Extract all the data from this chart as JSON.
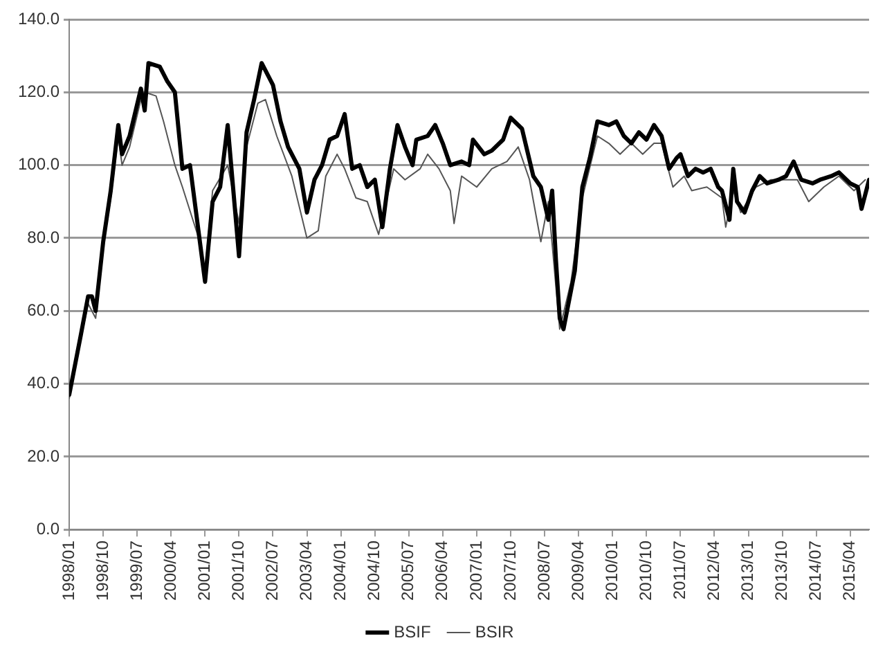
{
  "chart_data": {
    "type": "line",
    "xlim": [
      "1998-01",
      "2015-09"
    ],
    "xticks": [
      {
        "value": "1998-01",
        "label": "1998/01"
      },
      {
        "value": "1998-10",
        "label": "1998/10"
      },
      {
        "value": "1999-07",
        "label": "1999/07"
      },
      {
        "value": "2000-04",
        "label": "2000/04"
      },
      {
        "value": "2001-01",
        "label": "2001/01"
      },
      {
        "value": "2001-10",
        "label": "2001/10"
      },
      {
        "value": "2002-07",
        "label": "2002/07"
      },
      {
        "value": "2003-04",
        "label": "2003/04"
      },
      {
        "value": "2004-01",
        "label": "2004/01"
      },
      {
        "value": "2004-10",
        "label": "2004/10"
      },
      {
        "value": "2005-07",
        "label": "2005/07"
      },
      {
        "value": "2006-04",
        "label": "2006/04"
      },
      {
        "value": "2007-01",
        "label": "2007/01"
      },
      {
        "value": "2007-10",
        "label": "2007/10"
      },
      {
        "value": "2008-07",
        "label": "2008/07"
      },
      {
        "value": "2009-04",
        "label": "2009/04"
      },
      {
        "value": "2010-01",
        "label": "2010/01"
      },
      {
        "value": "2010-10",
        "label": "2010/10"
      },
      {
        "value": "2011-07",
        "label": "2011/07"
      },
      {
        "value": "2012-04",
        "label": "2012/04"
      },
      {
        "value": "2013-01",
        "label": "2013/01"
      },
      {
        "value": "2013-10",
        "label": "2013/10"
      },
      {
        "value": "2014-07",
        "label": "2014/07"
      },
      {
        "value": "2015-04",
        "label": "2015/04"
      }
    ],
    "ylim": [
      0,
      140
    ],
    "yticks": [
      {
        "value": 0,
        "label": "0.0"
      },
      {
        "value": 20,
        "label": "20.0"
      },
      {
        "value": 40,
        "label": "40.0"
      },
      {
        "value": 60,
        "label": "60.0"
      },
      {
        "value": 80,
        "label": "80.0"
      },
      {
        "value": 100,
        "label": "100.0"
      },
      {
        "value": 120,
        "label": "120.0"
      },
      {
        "value": 140,
        "label": "140.0"
      }
    ],
    "grid": "y",
    "legend": "bottom",
    "marker": "none",
    "series": [
      {
        "name": "BSIF",
        "color": "#000000",
        "x": [
          "1998-01",
          "1998-04",
          "1998-06",
          "1998-07",
          "1998-08",
          "1998-10",
          "1998-12",
          "1999-02",
          "1999-03",
          "1999-05",
          "1999-08",
          "1999-09",
          "1999-10",
          "2000-01",
          "2000-03",
          "2000-05",
          "2000-07",
          "2000-09",
          "2000-11",
          "2001-01",
          "2001-03",
          "2001-05",
          "2001-07",
          "2001-09",
          "2001-10",
          "2001-12",
          "2002-02",
          "2002-04",
          "2002-07",
          "2002-09",
          "2002-11",
          "2003-02",
          "2003-04",
          "2003-06",
          "2003-08",
          "2003-10",
          "2003-12",
          "2004-02",
          "2004-04",
          "2004-06",
          "2004-08",
          "2004-10",
          "2004-12",
          "2005-02",
          "2005-04",
          "2005-06",
          "2005-08",
          "2005-09",
          "2005-12",
          "2006-02",
          "2006-04",
          "2006-06",
          "2006-09",
          "2006-11",
          "2006-12",
          "2007-03",
          "2007-05",
          "2007-08",
          "2007-10",
          "2008-01",
          "2008-04",
          "2008-06",
          "2008-08",
          "2008-09",
          "2008-10",
          "2008-11",
          "2008-12",
          "2009-03",
          "2009-05",
          "2009-07",
          "2009-09",
          "2009-12",
          "2010-02",
          "2010-04",
          "2010-06",
          "2010-08",
          "2010-10",
          "2010-12",
          "2011-02",
          "2011-04",
          "2011-06",
          "2011-07",
          "2011-09",
          "2011-11",
          "2012-01",
          "2012-03",
          "2012-05",
          "2012-06",
          "2012-08",
          "2012-09",
          "2012-10",
          "2012-12",
          "2013-02",
          "2013-04",
          "2013-06",
          "2013-09",
          "2013-11",
          "2014-01",
          "2014-03",
          "2014-06",
          "2014-08",
          "2014-11",
          "2015-01",
          "2015-04",
          "2015-06",
          "2015-07",
          "2015-09"
        ],
        "values": [
          37,
          53,
          64,
          64,
          60,
          79,
          93,
          111,
          103,
          108,
          121,
          115,
          128,
          127,
          123,
          120,
          99,
          100,
          84,
          68,
          90,
          94,
          111,
          87,
          75,
          109,
          118,
          128,
          122,
          112,
          105,
          99,
          87,
          96,
          100,
          107,
          108,
          114,
          99,
          100,
          94,
          96,
          83,
          99,
          111,
          105,
          100,
          107,
          108,
          111,
          106,
          100,
          101,
          100,
          107,
          103,
          104,
          107,
          113,
          110,
          97,
          94,
          85,
          93,
          74,
          58,
          55,
          71,
          94,
          102,
          112,
          111,
          112,
          108,
          106,
          109,
          107,
          111,
          108,
          99,
          102,
          103,
          97,
          99,
          98,
          99,
          94,
          93,
          85,
          99,
          90,
          87,
          93,
          97,
          95,
          96,
          97,
          101,
          96,
          95,
          96,
          97,
          98,
          95,
          94,
          88,
          96
        ]
      },
      {
        "name": "BSIR",
        "color": "#555555",
        "x": [
          "1998-01",
          "1998-04",
          "1998-06",
          "1998-07",
          "1998-08",
          "1998-10",
          "1998-12",
          "1999-02",
          "1999-03",
          "1999-05",
          "1999-08",
          "1999-09",
          "1999-12",
          "2000-02",
          "2000-05",
          "2000-07",
          "2000-11",
          "2001-01",
          "2001-03",
          "2001-07",
          "2001-10",
          "2001-12",
          "2002-03",
          "2002-05",
          "2002-08",
          "2002-12",
          "2003-04",
          "2003-07",
          "2003-09",
          "2003-12",
          "2004-02",
          "2004-05",
          "2004-08",
          "2004-11",
          "2005-03",
          "2005-06",
          "2005-10",
          "2005-12",
          "2006-03",
          "2006-06",
          "2006-07",
          "2006-09",
          "2007-01",
          "2007-05",
          "2007-09",
          "2007-12",
          "2008-03",
          "2008-06",
          "2008-08",
          "2008-11",
          "2009-02",
          "2009-05",
          "2009-09",
          "2009-12",
          "2010-03",
          "2010-06",
          "2010-09",
          "2010-12",
          "2011-02",
          "2011-05",
          "2011-08",
          "2011-10",
          "2012-02",
          "2012-06",
          "2012-07",
          "2012-09",
          "2012-11",
          "2013-03",
          "2013-07",
          "2013-11",
          "2014-02",
          "2014-05",
          "2014-09",
          "2015-01",
          "2015-05",
          "2015-08"
        ],
        "values": [
          36,
          52,
          62,
          60,
          58,
          78,
          91,
          108,
          100,
          105,
          118,
          120,
          119,
          112,
          100,
          94,
          81,
          71,
          93,
          100,
          84,
          105,
          117,
          118,
          108,
          97,
          80,
          82,
          97,
          103,
          99,
          91,
          90,
          81,
          99,
          96,
          99,
          103,
          99,
          93,
          84,
          97,
          94,
          99,
          101,
          105,
          96,
          79,
          90,
          55,
          68,
          91,
          108,
          106,
          103,
          106,
          103,
          106,
          106,
          94,
          97,
          93,
          94,
          91,
          83,
          93,
          87,
          94,
          96,
          96,
          96,
          90,
          94,
          97,
          93,
          96
        ]
      }
    ]
  }
}
